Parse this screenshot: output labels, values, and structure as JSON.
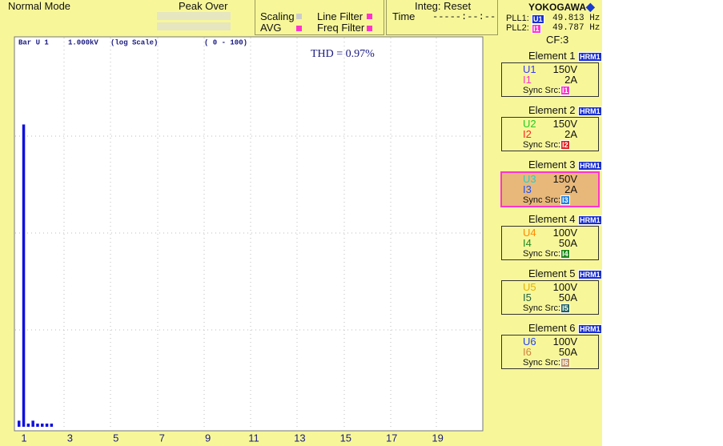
{
  "header": {
    "mode": "Normal Mode",
    "peak_over": "Peak Over",
    "scaling": "Scaling",
    "avg": "AVG",
    "line_filter": "Line Filter",
    "freq_filter": "Freq Filter",
    "integ": "Integ: Reset",
    "time_label": "Time",
    "time_value": "-----:--:--",
    "brand": "YOKOGAWA",
    "pll": [
      {
        "label": "PLL1:",
        "source": "U1",
        "freq": "49.813 Hz"
      },
      {
        "label": "PLL2:",
        "source": "I1",
        "freq": "49.787 Hz"
      }
    ],
    "cf": "CF:3"
  },
  "chart_data": {
    "type": "bar",
    "item": "Bar U 1",
    "range": "1.000kV",
    "scale": "(log Scale)",
    "order_range": "( 0 - 100)",
    "annotation": "THD = 0.97%",
    "x": [
      0,
      1,
      2,
      3,
      4,
      5,
      6,
      7
    ],
    "values": [
      0.012,
      81,
      0.011,
      0.012,
      0.011,
      0.011,
      0.011,
      0.011
    ],
    "xlim": [
      0,
      100
    ],
    "ylim": [
      0.01,
      1000
    ],
    "log": true,
    "color": "#1010e0",
    "bottom_labels": [
      "1",
      "3",
      "5",
      "7",
      "9",
      "11",
      "13",
      "15",
      "17",
      "19"
    ]
  },
  "elements": [
    {
      "title": "Element 1",
      "mode": "HRM1",
      "u": "U1",
      "u_range": "150V",
      "i": "I1",
      "i_range": "2A",
      "sync_label": "Sync Src:",
      "sync": "I1",
      "u_color": "#3a3aff",
      "i_color": "#ff33cc",
      "sync_color": "#ff33cc",
      "selected": false
    },
    {
      "title": "Element 2",
      "mode": "HRM1",
      "u": "U2",
      "u_range": "150V",
      "i": "I2",
      "i_range": "2A",
      "sync_label": "Sync Src:",
      "sync": "I2",
      "u_color": "#22cc22",
      "i_color": "#ff2020",
      "sync_color": "#e02020",
      "selected": false
    },
    {
      "title": "Element 3",
      "mode": "HRM1",
      "u": "U3",
      "u_range": "150V",
      "i": "I3",
      "i_range": "2A",
      "sync_label": "Sync Src:",
      "sync": "I3",
      "u_color": "#22d0d0",
      "i_color": "#1a50ff",
      "sync_color": "#2080e0",
      "selected": true
    },
    {
      "title": "Element 4",
      "mode": "HRM1",
      "u": "U4",
      "u_range": "100V",
      "i": "I4",
      "i_range": "50A",
      "sync_label": "Sync Src:",
      "sync": "I4",
      "u_color": "#ff8800",
      "i_color": "#208820",
      "sync_color": "#208820",
      "selected": false
    },
    {
      "title": "Element 5",
      "mode": "HRM1",
      "u": "U5",
      "u_range": "100V",
      "i": "I5",
      "i_range": "50A",
      "sync_label": "Sync Src:",
      "sync": "I5",
      "u_color": "#e8b000",
      "i_color": "#206040",
      "sync_color": "#206060",
      "selected": false
    },
    {
      "title": "Element 6",
      "mode": "HRM1",
      "u": "U6",
      "u_range": "100V",
      "i": "I6",
      "i_range": "50A",
      "sync_label": "Sync Src:",
      "sync": "I6",
      "u_color": "#2040ff",
      "i_color": "#d08040",
      "sync_color": "#c09060",
      "selected": false
    }
  ]
}
